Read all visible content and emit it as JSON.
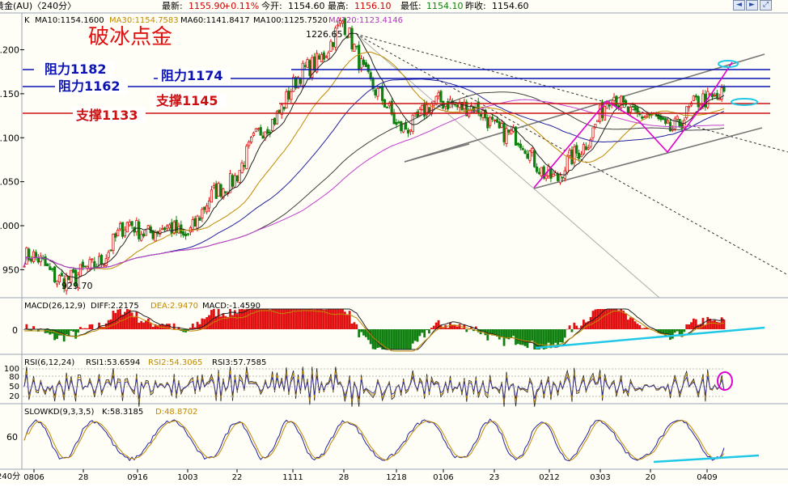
{
  "header": {
    "title": "黄金(AU)〈240分〉",
    "latest_label": "最新:",
    "latest": "1155.90",
    "change": "+0.11%",
    "open_label": "今开:",
    "open": "1154.60",
    "high_label": "最高:",
    "high": "1156.10",
    "low_label": "最低:",
    "low": "1154.10",
    "prev_label": "昨收:",
    "prev": "1154.60"
  },
  "toolbar": {
    "left": "◄",
    "right": "►",
    "zoom": "⤢"
  },
  "main_panel": {
    "prefix": "K",
    "ma10": "MA10:1154.1600",
    "ma30": "MA30:1154.7583",
    "ma60": "MA60:1141.8417",
    "ma100": "MA100:1125.7520",
    "ma120": "MA120:1123.4146",
    "headline": "破冰点金",
    "peak_label": "1226.65",
    "trough_label": "929.70",
    "levels": [
      {
        "label": "阻力1182",
        "price": 1182,
        "color": "#0a12b0"
      },
      {
        "label": "阻力1174",
        "price": 1174,
        "color": "#0a12b0"
      },
      {
        "label": "阻力1162",
        "price": 1162,
        "color": "#0a12b0"
      },
      {
        "label": "支撑1145",
        "price": 1145,
        "color": "#cc1010"
      },
      {
        "label": "支撑1133",
        "price": 1133,
        "color": "#cc1010"
      }
    ],
    "y_ticks": [
      "1.200",
      "1.150",
      "1.100",
      "1.050",
      "1.000",
      "950"
    ]
  },
  "macd_panel": {
    "prefix": "MACD(26,12,9)",
    "diff": "DIFF:2.2175",
    "dea": "DEA:2.9470",
    "macd": "MACD:-1.4590",
    "y_ticks": [
      "0"
    ]
  },
  "rsi_panel": {
    "prefix": "RSI(6,12,24)",
    "rsi1": "RSI1:53.6594",
    "rsi2": "RSI2:54.3065",
    "rsi3": "RSI3:57.7585",
    "y_ticks": [
      "100",
      "80",
      "50",
      "20"
    ]
  },
  "kd_panel": {
    "prefix": "SLOWKD(9,3,3,5)",
    "k": "K:58.3185",
    "d": "D:48.8702",
    "y_ticks": [
      "60"
    ]
  },
  "x_axis": {
    "period": "240分",
    "labels": [
      "0806",
      "28",
      "0916",
      "1003",
      "22",
      "1111",
      "28",
      "1218",
      "0106",
      "23",
      "0212",
      "0303",
      "20",
      "0409"
    ]
  },
  "colors": {
    "up": "#e01010",
    "down": "#108010",
    "resistance": "#0a12b0",
    "support": "#cc1010",
    "annotation": "#e000d0",
    "highlight": "#20c8e8"
  },
  "chart_data": [
    {
      "type": "candlestick",
      "title": "黄金(AU)〈240分〉",
      "y_range": [
        920,
        1240
      ],
      "x": [
        "0806",
        "28",
        "0916",
        "1003",
        "22",
        "1111",
        "28",
        "1218",
        "0106",
        "23",
        "0212",
        "0303",
        "20",
        "0409"
      ],
      "close_trace": [
        [
          "0806",
          965
        ],
        [
          "28",
          935
        ],
        [
          "0916",
          1000
        ],
        [
          "1003",
          990
        ],
        [
          "22",
          1060
        ],
        [
          "1111",
          1150
        ],
        [
          "28",
          1226.65
        ],
        [
          "1218",
          1110
        ],
        [
          "0106",
          1145
        ],
        [
          "23",
          1110
        ],
        [
          "0212",
          1050
        ],
        [
          "0303",
          1145
        ],
        [
          "20",
          1110
        ],
        [
          "0409",
          1156
        ]
      ],
      "annotations": [
        "1226.65",
        "929.70"
      ],
      "horizontal_levels": [
        1182,
        1174,
        1162,
        1145,
        1133
      ]
    },
    {
      "type": "bar",
      "name": "MACD(26,12,9)",
      "series": [
        {
          "name": "DIFF",
          "last": 2.2175
        },
        {
          "name": "DEA",
          "last": 2.947
        },
        {
          "name": "MACD",
          "last": -1.459
        }
      ]
    },
    {
      "type": "line",
      "name": "RSI(6,12,24)",
      "ylim": [
        0,
        100
      ],
      "series": [
        {
          "name": "RSI1",
          "last": 53.6594
        },
        {
          "name": "RSI2",
          "last": 54.3065
        },
        {
          "name": "RSI3",
          "last": 57.7585
        }
      ]
    },
    {
      "type": "line",
      "name": "SLOWKD(9,3,3,5)",
      "ylim": [
        0,
        100
      ],
      "series": [
        {
          "name": "K",
          "last": 58.3185
        },
        {
          "name": "D",
          "last": 48.8702
        }
      ]
    }
  ]
}
